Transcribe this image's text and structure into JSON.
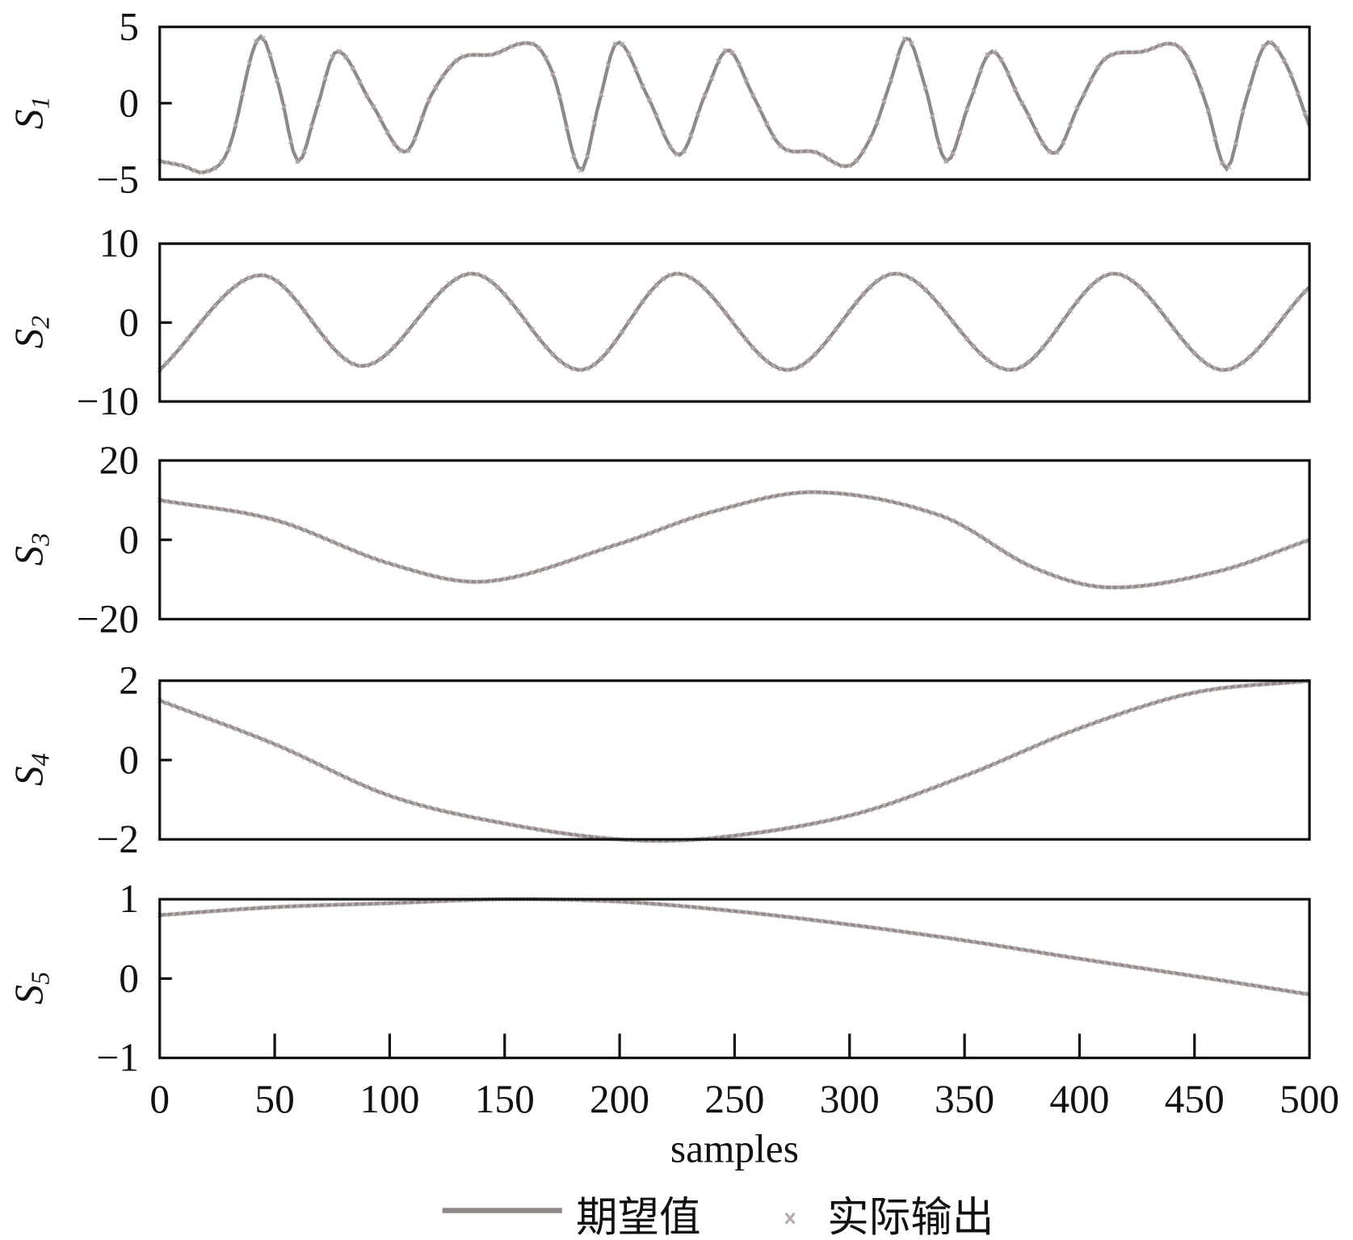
{
  "chart_data": {
    "type": "line",
    "xlabel": "samples",
    "xlim": [
      0,
      500
    ],
    "xticks": [
      "0",
      "50",
      "100",
      "150",
      "200",
      "250",
      "300",
      "350",
      "400",
      "450",
      "500"
    ],
    "legend": {
      "placement": "bottom",
      "entries": [
        {
          "label": "期望值",
          "style": "line"
        },
        {
          "label": "实际输出",
          "style": "x-marker"
        }
      ]
    },
    "colors": {
      "desired": "#8f8886",
      "actual": "#b5aeac",
      "axis": "#111111"
    },
    "panels": [
      {
        "ylabel": "S",
        "ysub": "1",
        "ylim": [
          -5,
          5
        ],
        "yticks": [
          "5",
          "0",
          "−5"
        ],
        "points": [
          [
            0,
            -3.8
          ],
          [
            10,
            -4.1
          ],
          [
            20,
            -4.5
          ],
          [
            30,
            -3
          ],
          [
            43,
            4.3
          ],
          [
            52,
            1
          ],
          [
            60,
            -3.8
          ],
          [
            68,
            -0.5
          ],
          [
            77,
            3.4
          ],
          [
            92,
            0
          ],
          [
            107,
            -3.2
          ],
          [
            118,
            0.5
          ],
          [
            130,
            2.9
          ],
          [
            145,
            3.2
          ],
          [
            157,
            3.9
          ],
          [
            165,
            3.6
          ],
          [
            172,
            1.5
          ],
          [
            183,
            -4.4
          ],
          [
            191,
            0
          ],
          [
            199,
            4
          ],
          [
            212,
            0.5
          ],
          [
            226,
            -3.4
          ],
          [
            237,
            0.5
          ],
          [
            247,
            3.5
          ],
          [
            258,
            0.5
          ],
          [
            270,
            -2.8
          ],
          [
            285,
            -3.2
          ],
          [
            300,
            -4.1
          ],
          [
            310,
            -2
          ],
          [
            318,
            1.5
          ],
          [
            325,
            4.3
          ],
          [
            333,
            1
          ],
          [
            342,
            -3.8
          ],
          [
            352,
            0
          ],
          [
            362,
            3.4
          ],
          [
            375,
            0
          ],
          [
            389,
            -3.3
          ],
          [
            400,
            0
          ],
          [
            411,
            2.9
          ],
          [
            428,
            3.4
          ],
          [
            440,
            3.9
          ],
          [
            447,
            3
          ],
          [
            455,
            0
          ],
          [
            464,
            -4.3
          ],
          [
            472,
            0
          ],
          [
            481,
            3.9
          ],
          [
            490,
            2.5
          ],
          [
            500,
            -1.5
          ]
        ]
      },
      {
        "ylabel": "S",
        "ysub": "2",
        "ylim": [
          -10,
          10
        ],
        "yticks": [
          "10",
          "0",
          "−10"
        ],
        "points": [
          [
            0,
            -6
          ],
          [
            44,
            6
          ],
          [
            88,
            -5.5
          ],
          [
            136,
            6.2
          ],
          [
            183,
            -6
          ],
          [
            225,
            6.2
          ],
          [
            273,
            -6
          ],
          [
            320,
            6.2
          ],
          [
            370,
            -6
          ],
          [
            415,
            6.2
          ],
          [
            462,
            -6
          ],
          [
            500,
            4.5
          ]
        ]
      },
      {
        "ylabel": "S",
        "ysub": "3",
        "ylim": [
          -20,
          20
        ],
        "yticks": [
          "20",
          "0",
          "−20"
        ],
        "points": [
          [
            0,
            10
          ],
          [
            50,
            5
          ],
          [
            100,
            -6
          ],
          [
            142,
            -10.5
          ],
          [
            200,
            -1
          ],
          [
            240,
            7
          ],
          [
            285,
            12
          ],
          [
            340,
            6
          ],
          [
            380,
            -7
          ],
          [
            413,
            -12
          ],
          [
            460,
            -8
          ],
          [
            500,
            0
          ]
        ]
      },
      {
        "ylabel": "S",
        "ysub": "4",
        "ylim": [
          -2,
          2
        ],
        "yticks": [
          "2",
          "0",
          "−2"
        ],
        "points": [
          [
            0,
            1.5
          ],
          [
            50,
            0.4
          ],
          [
            100,
            -0.9
          ],
          [
            150,
            -1.6
          ],
          [
            200,
            -2
          ],
          [
            240,
            -1.97
          ],
          [
            300,
            -1.4
          ],
          [
            350,
            -0.4
          ],
          [
            400,
            0.8
          ],
          [
            450,
            1.7
          ],
          [
            500,
            2
          ]
        ]
      },
      {
        "ylabel": "S",
        "ysub": "5",
        "ylim": [
          -1,
          1
        ],
        "yticks": [
          "1",
          "0",
          "−1"
        ],
        "points": [
          [
            0,
            0.8
          ],
          [
            50,
            0.9
          ],
          [
            100,
            0.95
          ],
          [
            150,
            1
          ],
          [
            200,
            0.97
          ],
          [
            250,
            0.85
          ],
          [
            300,
            0.68
          ],
          [
            350,
            0.48
          ],
          [
            400,
            0.25
          ],
          [
            450,
            0.03
          ],
          [
            500,
            -0.2
          ]
        ]
      }
    ]
  }
}
